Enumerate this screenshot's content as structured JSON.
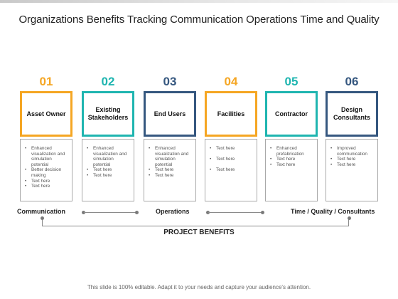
{
  "title": "Organizations Benefits Tracking Communication Operations Time and Quality",
  "colors": {
    "orange": "#f5a623",
    "teal": "#1fb5b0",
    "navy": "#35577f"
  },
  "steps": [
    {
      "number": "01",
      "label": "Asset Owner",
      "color": "#f5a623",
      "details": [
        "Enhanced visualization and simulation potential",
        "Better decision making",
        "Text here",
        "Text here"
      ]
    },
    {
      "number": "02",
      "label": "Existing Stakeholders",
      "color": "#1fb5b0",
      "details": [
        "Enhanced visualization and simulation potential",
        "Text here",
        "Text here"
      ]
    },
    {
      "number": "03",
      "label": "End Users",
      "color": "#35577f",
      "details": [
        "Enhanced visualization and simulation potential",
        "Text here",
        "Text here"
      ]
    },
    {
      "number": "04",
      "label": "Facilities",
      "color": "#f5a623",
      "details": [
        "Text here",
        "Text here",
        "Text here"
      ]
    },
    {
      "number": "05",
      "label": "Contractor",
      "color": "#1fb5b0",
      "details": [
        "Enhanced prefabrication",
        "Text here",
        "Text here"
      ]
    },
    {
      "number": "06",
      "label": "Design Consultants",
      "color": "#35577f",
      "details": [
        "Improved communication",
        "Text here",
        "Text here"
      ]
    }
  ],
  "benefits": {
    "communication": "Communication",
    "operations": "Operations",
    "time_quality": "Time / Quality / Consultants"
  },
  "project_benefits": "PROJECT BENEFITS",
  "footer": "This slide is 100% editable. Adapt it to your needs and capture your audience's attention."
}
